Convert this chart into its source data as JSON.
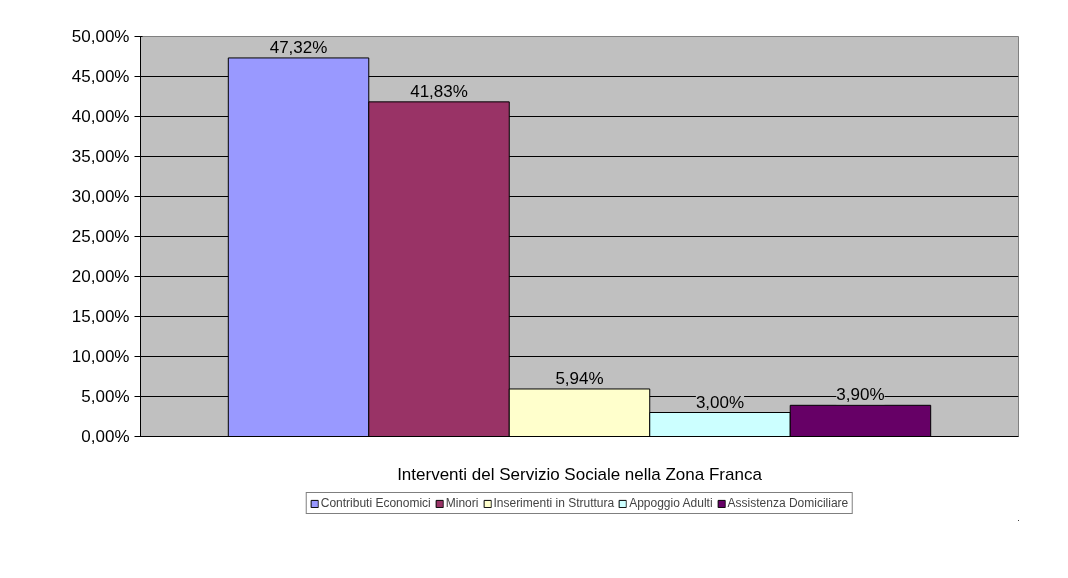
{
  "chart_data": {
    "type": "bar",
    "categories": [
      "Interventi del Servizio Sociale nella Zona Franca"
    ],
    "series": [
      {
        "name": "Contributi Economici",
        "color": "#9999ff",
        "values": [
          47.32
        ],
        "value_labels": [
          "47,32%"
        ]
      },
      {
        "name": "Minori",
        "color": "#993366",
        "values": [
          41.83
        ],
        "value_labels": [
          "41,83%"
        ]
      },
      {
        "name": "Inserimenti in Struttura",
        "color": "#ffffcc",
        "values": [
          5.94
        ],
        "value_labels": [
          "5,94%"
        ]
      },
      {
        "name": "Appoggio Adulti",
        "color": "#ccffff",
        "values": [
          3.0
        ],
        "value_labels": [
          "3,00%"
        ]
      },
      {
        "name": "Assistenza Domiciliare",
        "color": "#660066",
        "values": [
          3.9
        ],
        "value_labels": [
          "3,90%"
        ]
      }
    ],
    "ylim": [
      0,
      50
    ],
    "yticks": [
      {
        "value": 0,
        "label": "0,00%"
      },
      {
        "value": 5,
        "label": "5,00%"
      },
      {
        "value": 10,
        "label": "10,00%"
      },
      {
        "value": 15,
        "label": "15,00%"
      },
      {
        "value": 20,
        "label": "20,00%"
      },
      {
        "value": 25,
        "label": "25,00%"
      },
      {
        "value": 30,
        "label": "30,00%"
      },
      {
        "value": 35,
        "label": "35,00%"
      },
      {
        "value": 40,
        "label": "40,00%"
      },
      {
        "value": 45,
        "label": "45,00%"
      },
      {
        "value": 50,
        "label": "50,00%"
      }
    ],
    "grid": "y",
    "legend": "bottom"
  }
}
